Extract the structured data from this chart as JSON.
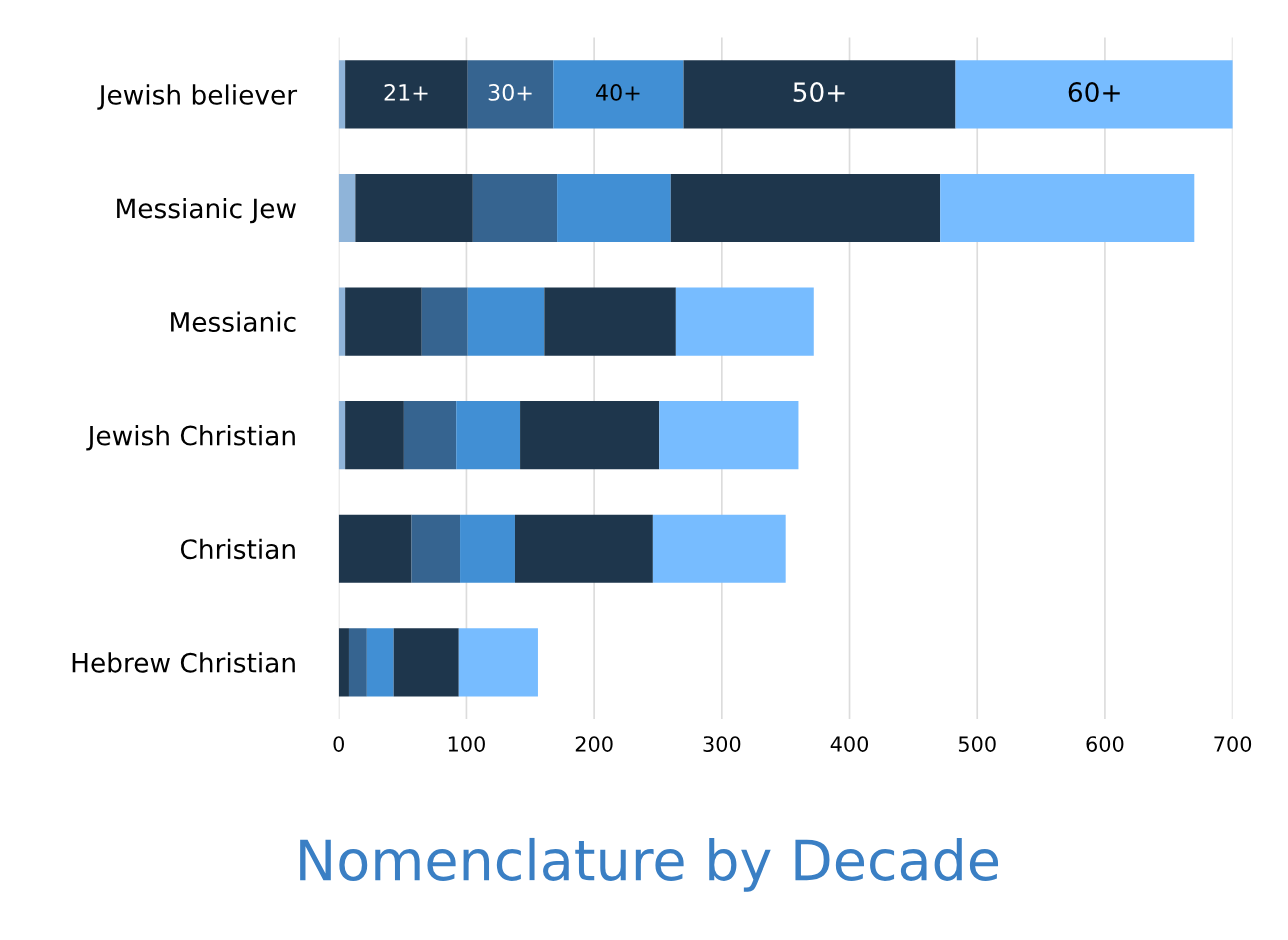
{
  "chart_data": {
    "type": "bar",
    "orientation": "horizontal",
    "stacked": true,
    "title": "Nomenclature by Decade",
    "categories": [
      "Jewish believer",
      "Messianic Jew",
      "Messianic",
      "Jewish Christian",
      "Christian",
      "Hebrew Christian"
    ],
    "series": [
      {
        "color": "#8fb4d9",
        "values": [
          5,
          13,
          5,
          5,
          0,
          0
        ]
      },
      {
        "name": "21+",
        "color": "#1e364c",
        "values": [
          96,
          92,
          60,
          46,
          57,
          8
        ]
      },
      {
        "name": "30+",
        "color": "#366490",
        "values": [
          67,
          66,
          36,
          41,
          38,
          14
        ]
      },
      {
        "name": "40+",
        "color": "#418fd4",
        "values": [
          102,
          89,
          60,
          50,
          43,
          21
        ]
      },
      {
        "name": "50+",
        "color": "#1e364c",
        "values": [
          213,
          211,
          103,
          109,
          108,
          51
        ]
      },
      {
        "name": "60+",
        "color": "#77bcff",
        "values": [
          218,
          199,
          108,
          109,
          104,
          62
        ]
      }
    ],
    "xlim": [
      0,
      700
    ],
    "xticks": [
      0,
      100,
      200,
      300,
      400,
      500,
      600,
      700
    ],
    "grid": "x",
    "legend": false
  }
}
